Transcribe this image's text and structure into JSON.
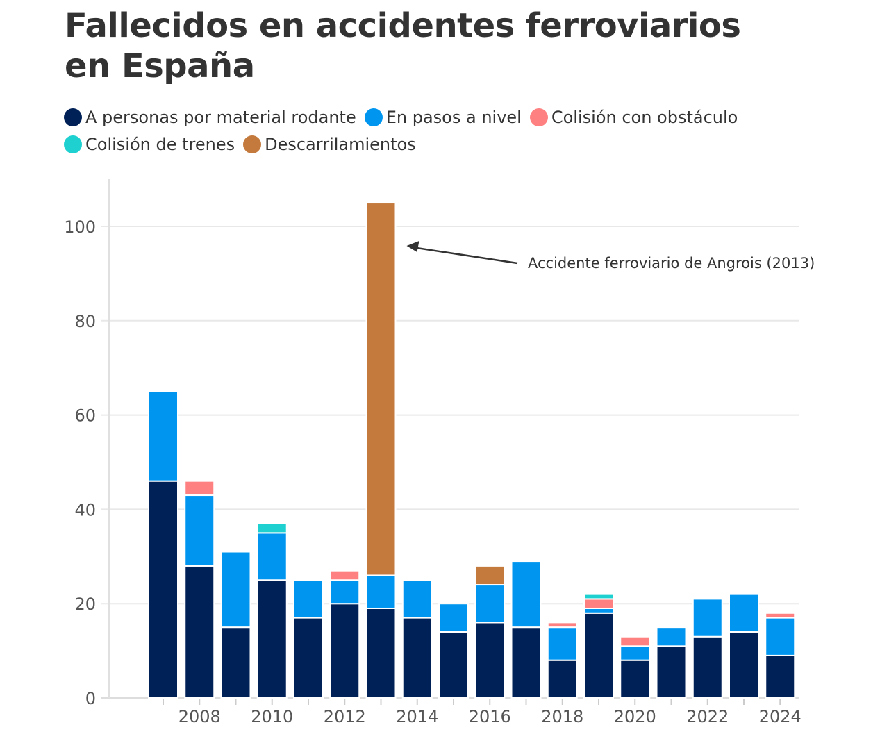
{
  "chart_data": {
    "type": "bar",
    "stacked": true,
    "title": "Fallecidos en accidentes ferroviarios en España",
    "categories": [
      2007,
      2008,
      2009,
      2010,
      2011,
      2012,
      2013,
      2014,
      2015,
      2016,
      2017,
      2018,
      2019,
      2020,
      2021,
      2022,
      2023,
      2024
    ],
    "x_tick_labels": [
      "2008",
      "2010",
      "2012",
      "2014",
      "2016",
      "2018",
      "2020",
      "2022",
      "2024"
    ],
    "y_tick_labels": [
      "0",
      "20",
      "40",
      "60",
      "80",
      "100"
    ],
    "ylim": [
      0,
      110
    ],
    "grid": true,
    "legend_position": "top-left",
    "series": [
      {
        "name": "A personas por material rodante",
        "color": "#002157",
        "values": [
          46,
          28,
          15,
          25,
          17,
          20,
          19,
          17,
          14,
          16,
          15,
          8,
          18,
          8,
          11,
          13,
          14,
          9
        ]
      },
      {
        "name": "En pasos a nivel",
        "color": "#0096f0",
        "values": [
          19,
          15,
          16,
          10,
          8,
          5,
          7,
          8,
          6,
          8,
          14,
          7,
          1,
          3,
          4,
          8,
          8,
          8
        ]
      },
      {
        "name": "Colisión con obstáculo",
        "color": "#ff8080",
        "values": [
          0,
          3,
          0,
          0,
          0,
          2,
          0,
          0,
          0,
          0,
          0,
          1,
          2,
          2,
          0,
          0,
          0,
          1
        ]
      },
      {
        "name": "Colisión de trenes",
        "color": "#1fd0d0",
        "values": [
          0,
          0,
          0,
          2,
          0,
          0,
          0,
          0,
          0,
          0,
          0,
          0,
          1,
          0,
          0,
          0,
          0,
          0
        ]
      },
      {
        "name": "Descarrilamientos",
        "color": "#c47a3c",
        "values": [
          0,
          0,
          0,
          0,
          0,
          0,
          79,
          0,
          0,
          4,
          0,
          0,
          0,
          0,
          0,
          0,
          0,
          0
        ]
      }
    ],
    "annotation": {
      "text": "Accidente ferroviario de Angrois (2013)",
      "category": 2013
    }
  }
}
